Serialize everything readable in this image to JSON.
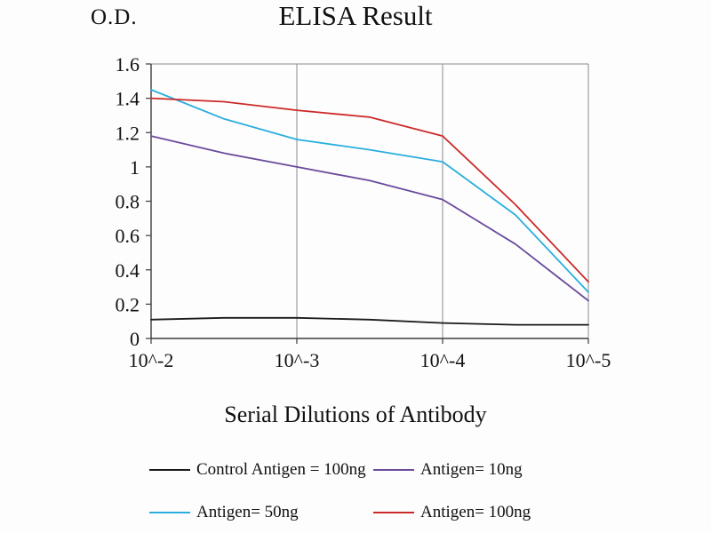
{
  "header": {
    "od_label": "O.D.",
    "title": "ELISA Result"
  },
  "x_axis_title": "Serial Dilutions of Antibody",
  "chart_data": {
    "type": "line",
    "title": "ELISA Result",
    "ylabel": "O.D.",
    "xlabel": "Serial Dilutions of Antibody",
    "ylim": [
      0,
      1.6
    ],
    "y_ticks": [
      0,
      0.2,
      0.4,
      0.6,
      0.8,
      1.0,
      1.2,
      1.4,
      1.6
    ],
    "y_tick_labels": [
      "0",
      "0.2",
      "0.4",
      "0.6",
      "0.8",
      "1",
      "1.2",
      "1.4",
      "1.6"
    ],
    "x_tick_labels": [
      "10^-2",
      "10^-3",
      "10^-4",
      "10^-5"
    ],
    "grid": "vertical-major",
    "legend_position": "bottom",
    "x": [
      0,
      0.5,
      1,
      1.5,
      2,
      2.5,
      3
    ],
    "series": [
      {
        "name": "Control Antigen = 100ng",
        "color": "#1a1a1a",
        "values": [
          0.11,
          0.12,
          0.12,
          0.11,
          0.09,
          0.08,
          0.08
        ]
      },
      {
        "name": "Antigen= 10ng",
        "color": "#6a4b9c",
        "values": [
          1.18,
          1.08,
          1.0,
          0.92,
          0.81,
          0.55,
          0.22
        ]
      },
      {
        "name": "Antigen= 50ng",
        "color": "#2aaede",
        "values": [
          1.45,
          1.28,
          1.16,
          1.1,
          1.03,
          0.72,
          0.27
        ]
      },
      {
        "name": "Antigen= 100ng",
        "color": "#cc2a2a",
        "values": [
          1.4,
          1.38,
          1.33,
          1.29,
          1.18,
          0.78,
          0.33
        ]
      }
    ]
  }
}
